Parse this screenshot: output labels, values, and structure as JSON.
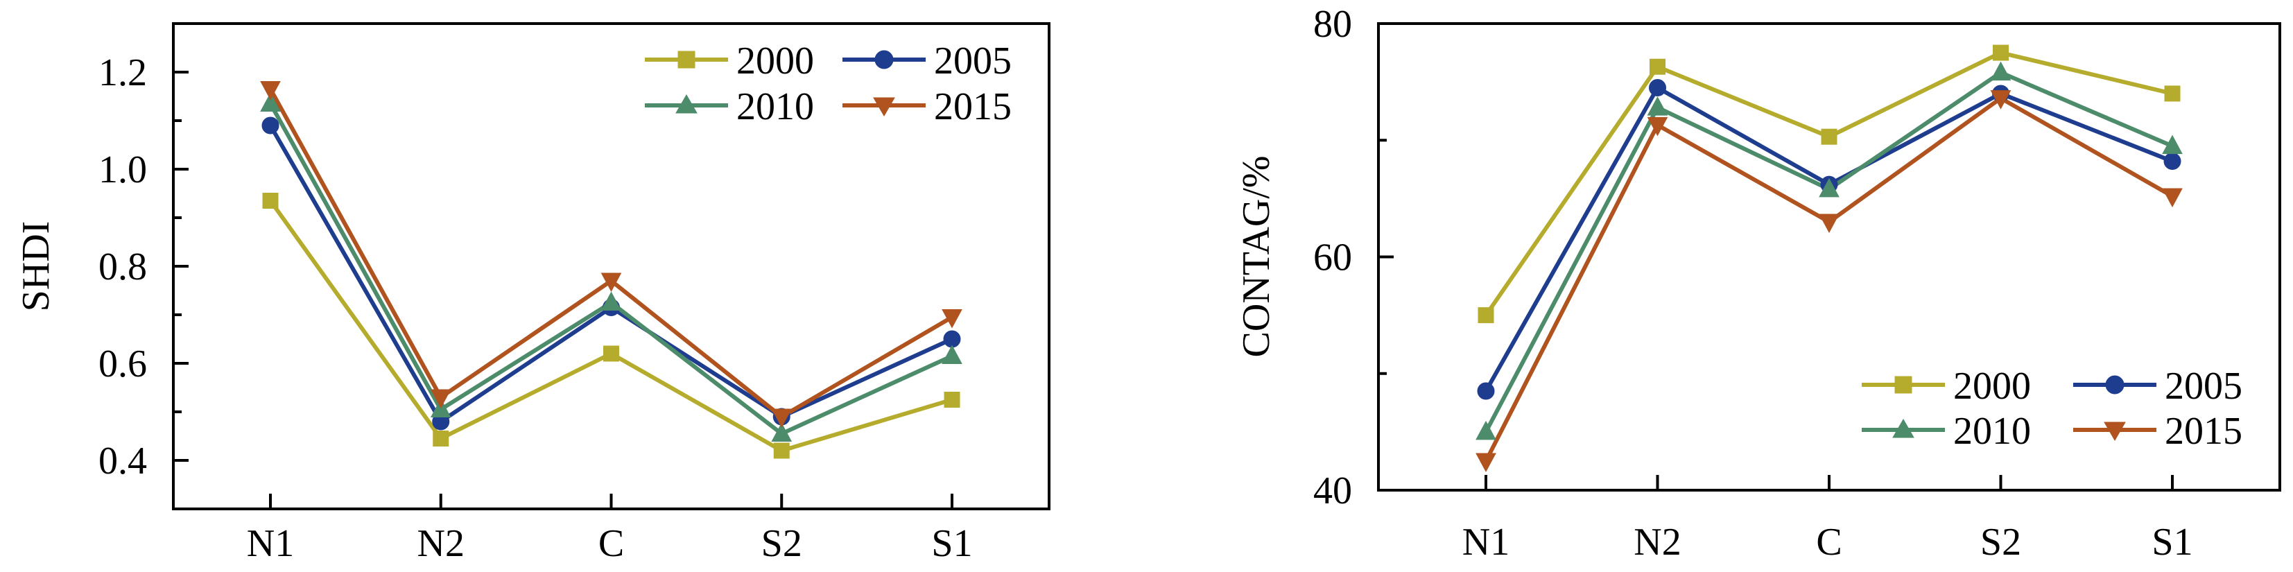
{
  "colors": {
    "2000": "#b5ac2e",
    "2005": "#1e3d8f",
    "2010": "#4c8c6a",
    "2015": "#b0531e"
  },
  "chart_data": [
    {
      "type": "line",
      "xlabel": "",
      "ylabel": "SHDI",
      "categories": [
        "N1",
        "N2",
        "C",
        "S2",
        "S1"
      ],
      "ylim": [
        0.3,
        1.3
      ],
      "yticks": [
        "0.4",
        "0.6",
        "0.8",
        "1.0",
        "1.2"
      ],
      "legend_position": "top-right",
      "series": [
        {
          "name": "2000",
          "marker": "square",
          "values": [
            0.935,
            0.445,
            0.62,
            0.42,
            0.525
          ]
        },
        {
          "name": "2005",
          "marker": "circle",
          "values": [
            1.09,
            0.48,
            0.715,
            0.49,
            0.65
          ]
        },
        {
          "name": "2010",
          "marker": "triangle-up",
          "values": [
            1.135,
            0.505,
            0.725,
            0.455,
            0.615
          ]
        },
        {
          "name": "2015",
          "marker": "triangle-down",
          "values": [
            1.165,
            0.53,
            0.77,
            0.49,
            0.695
          ]
        }
      ]
    },
    {
      "type": "line",
      "xlabel": "",
      "ylabel": "CONTAG/%",
      "categories": [
        "N1",
        "N2",
        "C",
        "S2",
        "S1"
      ],
      "ylim": [
        40,
        80
      ],
      "yticks": [
        "40",
        "60",
        "80"
      ],
      "legend_position": "bottom-right",
      "series": [
        {
          "name": "2000",
          "marker": "square",
          "values": [
            55,
            76.3,
            70.3,
            77.5,
            74
          ]
        },
        {
          "name": "2005",
          "marker": "circle",
          "values": [
            48.5,
            74.5,
            66.2,
            74,
            68.2
          ]
        },
        {
          "name": "2010",
          "marker": "triangle-up",
          "values": [
            45,
            72.8,
            65.8,
            75.8,
            69.5
          ]
        },
        {
          "name": "2015",
          "marker": "triangle-down",
          "values": [
            42.5,
            71.3,
            63,
            73.6,
            65.2
          ]
        }
      ]
    }
  ]
}
